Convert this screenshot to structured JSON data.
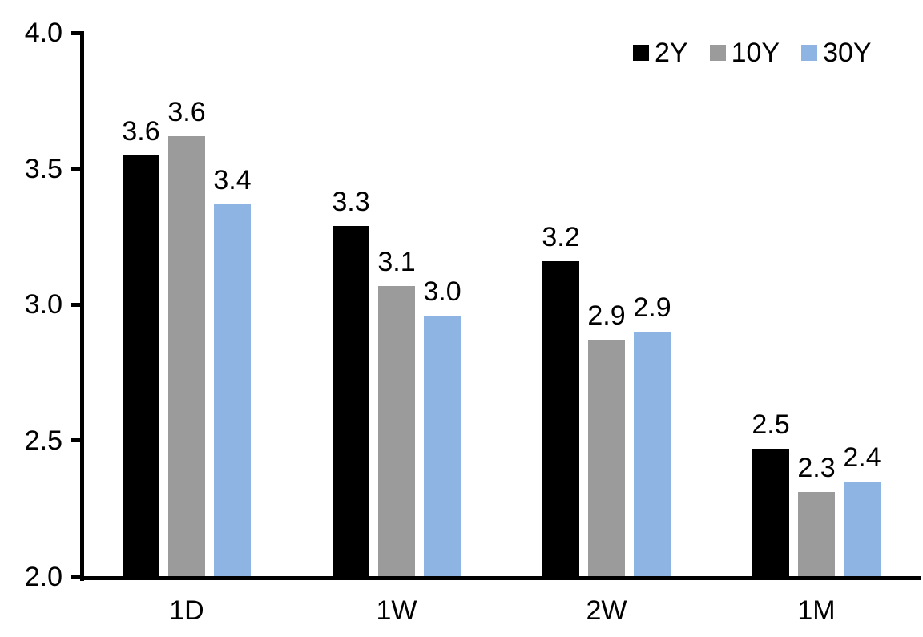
{
  "chart_data": {
    "type": "bar",
    "title": "",
    "xlabel": "",
    "ylabel": "",
    "categories": [
      "1D",
      "1W",
      "2W",
      "1M"
    ],
    "series": [
      {
        "name": "2Y",
        "color": "#000000",
        "values": [
          3.55,
          3.29,
          3.16,
          2.47
        ],
        "labels": [
          "3.6",
          "3.3",
          "3.2",
          "2.5"
        ]
      },
      {
        "name": "10Y",
        "color": "#9B9B9B",
        "values": [
          3.62,
          3.07,
          2.87,
          2.31
        ],
        "labels": [
          "3.6",
          "3.1",
          "2.9",
          "2.3"
        ]
      },
      {
        "name": "30Y",
        "color": "#8EB4E3",
        "values": [
          3.37,
          2.96,
          2.9,
          2.35
        ],
        "labels": [
          "3.4",
          "3.0",
          "2.9",
          "2.4"
        ]
      }
    ],
    "y_axis": {
      "min": 2.0,
      "max": 4.0,
      "tick_labels": [
        "4.0",
        "3.5",
        "3.0",
        "2.5",
        "2.0"
      ],
      "tick_values": [
        4.0,
        3.5,
        3.0,
        2.5,
        2.0
      ]
    },
    "legend": {
      "position": "top-right",
      "entries": [
        "2Y",
        "10Y",
        "30Y"
      ]
    },
    "grid": false,
    "axis_color": "#000000",
    "text_color": "#000000",
    "background_color": "#ffffff"
  }
}
